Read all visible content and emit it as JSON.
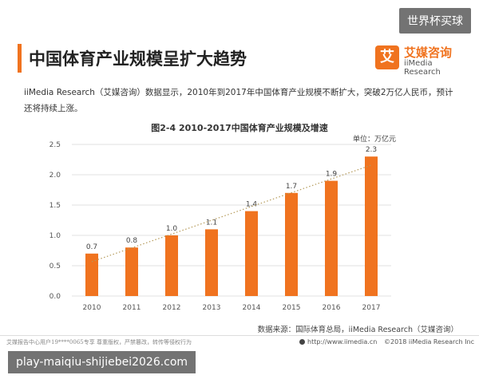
{
  "watermark_top": "世界杯买球",
  "watermark_bottom": "play-maiqiu-shijiebei2026.com",
  "header": {
    "title": "中国体育产业规模呈扩大趋势",
    "brand_cn": "艾媒咨询",
    "brand_en": "iiMedia Research",
    "brand_logo_char": "艾"
  },
  "intro_text": "iiMedia Research（艾媒咨询）数据显示，2010年到2017年中国体育产业规模不断扩大，突破2万亿人民币，预计还将持续上涨。",
  "chart_title": "图2-4 2010-2017中国体育产业规模及增速",
  "unit_label": "单位：万亿元",
  "source": "数据来源：国际体育总局，iiMedia Research（艾媒咨询）",
  "footer": {
    "left": "艾媒报告中心用户19****0065专享 尊重版权，严禁篡改，转传等侵权行为",
    "url": "http://www.iimedia.cn",
    "copyright": "©2018  iiMedia Research  Inc"
  },
  "colors": {
    "accent": "#f0731f",
    "bar": "#f0731f",
    "trendline": "#b59a5a"
  },
  "chart_data": {
    "type": "bar",
    "title": "图2-4 2010-2017中国体育产业规模及增速",
    "categories": [
      "2010",
      "2011",
      "2012",
      "2013",
      "2014",
      "2015",
      "2016",
      "2017"
    ],
    "values": [
      0.7,
      0.8,
      1.0,
      1.1,
      1.4,
      1.7,
      1.9,
      2.3
    ],
    "value_labels": [
      "0.7",
      "0.8",
      "1.0",
      "1.1",
      "1.4",
      "1.7",
      "1.9",
      "2.3"
    ],
    "y_ticks": [
      "0.0",
      "0.5",
      "1.0",
      "1.5",
      "2.0",
      "2.5"
    ],
    "ylim": [
      0,
      2.5
    ],
    "grid": true,
    "trendline": "dotted linear",
    "xlabel": "",
    "ylabel": ""
  }
}
